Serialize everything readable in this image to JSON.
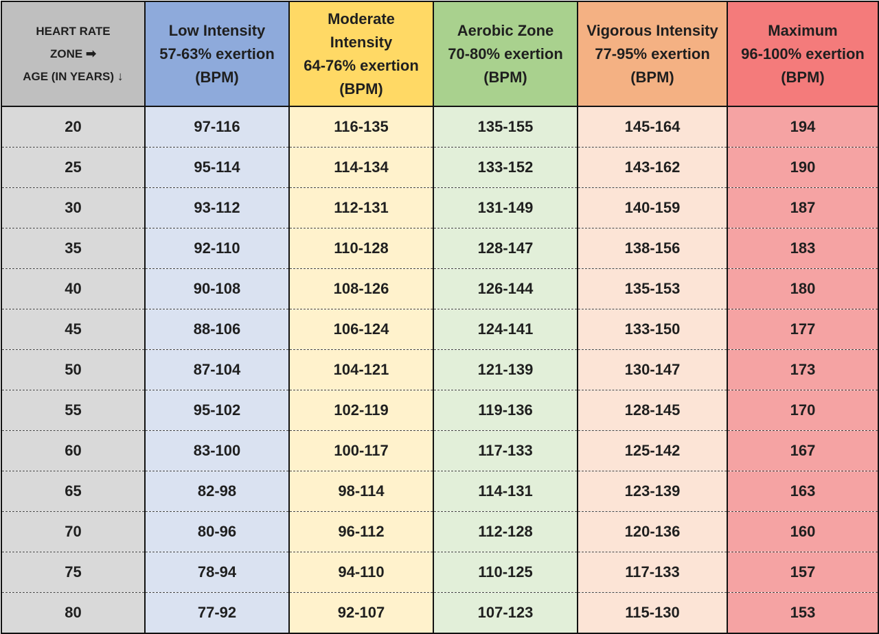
{
  "colors": {
    "age": "#d9d9d9",
    "low": "#dae2f1",
    "moderate": "#fff2cc",
    "aerobic": "#e2efd9",
    "vigorous": "#fce4d6",
    "maximum": "#f5a3a3",
    "header_age": "#bfbfbf",
    "header_low": "#8eaadb",
    "header_moderate": "#ffd965",
    "header_aerobic": "#a9d18e",
    "header_vigorous": "#f4b183",
    "header_maximum": "#f47b7b"
  },
  "header": {
    "corner": {
      "line1": "HEART RATE",
      "line2": "ZONE",
      "arrow_right": "➡",
      "line3": "AGE (IN YEARS)",
      "arrow_down": "↓"
    },
    "low": {
      "line1": "Low Intensity",
      "line2": "57-63% exertion",
      "line3": "(BPM)"
    },
    "moderate": {
      "line1": "Moderate",
      "line2": "Intensity",
      "line3": "64-76% exertion",
      "line4": "(BPM)"
    },
    "aerobic": {
      "line1": "Aerobic Zone",
      "line2": "70-80% exertion",
      "line3": "(BPM)"
    },
    "vigorous": {
      "line1": "Vigorous Intensity",
      "line2": "77-95% exertion",
      "line3": "(BPM)"
    },
    "maximum": {
      "line1": "Maximum",
      "line2": "96-100% exertion",
      "line3": "(BPM)"
    }
  },
  "rows": [
    {
      "age": "20",
      "low": "97-116",
      "moderate": "116-135",
      "aerobic": "135-155",
      "vigorous": "145-164",
      "maximum": "194"
    },
    {
      "age": "25",
      "low": "95-114",
      "moderate": "114-134",
      "aerobic": "133-152",
      "vigorous": "143-162",
      "maximum": "190"
    },
    {
      "age": "30",
      "low": "93-112",
      "moderate": "112-131",
      "aerobic": "131-149",
      "vigorous": "140-159",
      "maximum": "187"
    },
    {
      "age": "35",
      "low": "92-110",
      "moderate": "110-128",
      "aerobic": "128-147",
      "vigorous": "138-156",
      "maximum": "183"
    },
    {
      "age": "40",
      "low": "90-108",
      "moderate": "108-126",
      "aerobic": "126-144",
      "vigorous": "135-153",
      "maximum": "180"
    },
    {
      "age": "45",
      "low": "88-106",
      "moderate": "106-124",
      "aerobic": "124-141",
      "vigorous": "133-150",
      "maximum": "177"
    },
    {
      "age": "50",
      "low": "87-104",
      "moderate": "104-121",
      "aerobic": "121-139",
      "vigorous": "130-147",
      "maximum": "173"
    },
    {
      "age": "55",
      "low": "95-102",
      "moderate": "102-119",
      "aerobic": "119-136",
      "vigorous": "128-145",
      "maximum": "170"
    },
    {
      "age": "60",
      "low": "83-100",
      "moderate": "100-117",
      "aerobic": "117-133",
      "vigorous": "125-142",
      "maximum": "167"
    },
    {
      "age": "65",
      "low": "82-98",
      "moderate": "98-114",
      "aerobic": "114-131",
      "vigorous": "123-139",
      "maximum": "163"
    },
    {
      "age": "70",
      "low": "80-96",
      "moderate": "96-112",
      "aerobic": "112-128",
      "vigorous": "120-136",
      "maximum": "160"
    },
    {
      "age": "75",
      "low": "78-94",
      "moderate": "94-110",
      "aerobic": "110-125",
      "vigorous": "117-133",
      "maximum": "157"
    },
    {
      "age": "80",
      "low": "77-92",
      "moderate": "92-107",
      "aerobic": "107-123",
      "vigorous": "115-130",
      "maximum": "153"
    }
  ]
}
